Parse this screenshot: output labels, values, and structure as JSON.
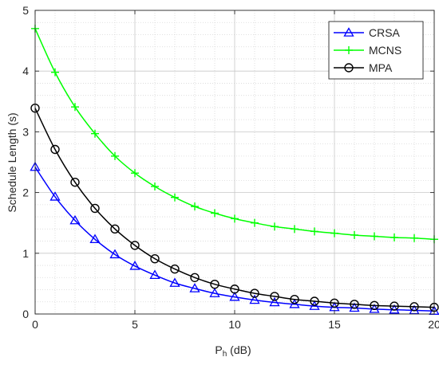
{
  "chart_data": {
    "type": "line",
    "xlabel_main": "P",
    "xlabel_sub": "h",
    "xlabel_rest": " (dB)",
    "ylabel": "Schedule Length (s)",
    "xlim": [
      0,
      20
    ],
    "ylim": [
      0,
      5
    ],
    "xticks": [
      0,
      5,
      10,
      15,
      20
    ],
    "yticks": [
      0,
      1,
      2,
      3,
      4,
      5
    ],
    "grid": true,
    "minor_grid": true,
    "legend_position": "top-right",
    "x": [
      0,
      1,
      2,
      3,
      4,
      5,
      6,
      7,
      8,
      9,
      10,
      11,
      12,
      13,
      14,
      15,
      16,
      17,
      18,
      19,
      20
    ],
    "series": [
      {
        "name": "CRSA",
        "color": "#0000ff",
        "marker": "triangle",
        "values": [
          2.42,
          1.93,
          1.54,
          1.23,
          0.98,
          0.79,
          0.64,
          0.51,
          0.42,
          0.34,
          0.28,
          0.23,
          0.19,
          0.16,
          0.13,
          0.11,
          0.1,
          0.08,
          0.07,
          0.06,
          0.05
        ]
      },
      {
        "name": "MCNS",
        "color": "#00ff00",
        "marker": "plus",
        "values": [
          4.7,
          3.98,
          3.41,
          2.97,
          2.6,
          2.32,
          2.1,
          1.92,
          1.77,
          1.66,
          1.57,
          1.5,
          1.44,
          1.4,
          1.36,
          1.33,
          1.3,
          1.28,
          1.26,
          1.25,
          1.23
        ]
      },
      {
        "name": "MPA",
        "color": "#000000",
        "marker": "circle",
        "values": [
          3.39,
          2.71,
          2.17,
          1.74,
          1.4,
          1.13,
          0.91,
          0.74,
          0.6,
          0.49,
          0.41,
          0.34,
          0.29,
          0.24,
          0.21,
          0.18,
          0.16,
          0.14,
          0.13,
          0.12,
          0.11
        ]
      }
    ]
  }
}
